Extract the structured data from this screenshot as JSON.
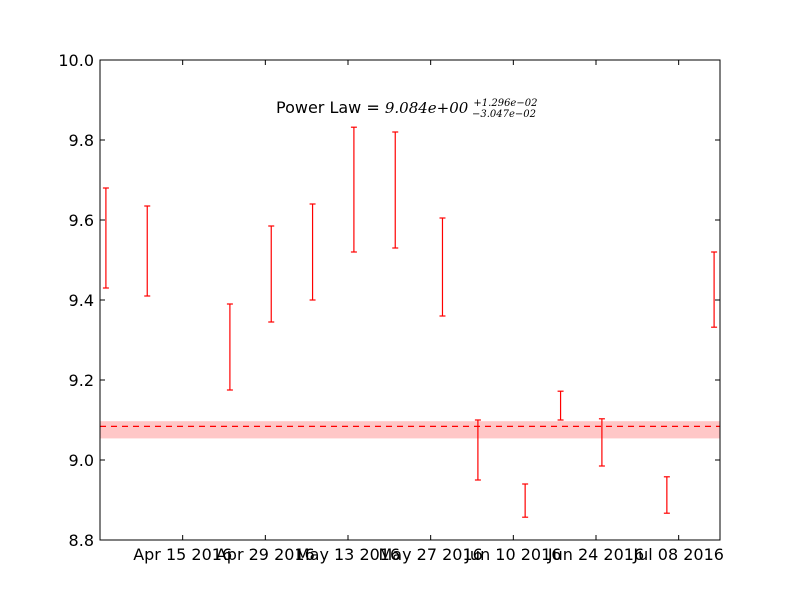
{
  "chart_data": {
    "type": "errorbar",
    "title": {
      "prefix": "Power Law = ",
      "value": "9.084e+00",
      "plus": "+1.296e−02",
      "minus": "−3.047e−02"
    },
    "xlabel": "",
    "ylabel": "",
    "ylim": [
      8.8,
      10.0
    ],
    "xlim": [
      "2016-04-01",
      "2016-07-15"
    ],
    "yticks": [
      8.8,
      9.0,
      9.2,
      9.4,
      9.6,
      9.8,
      10.0
    ],
    "ytick_labels": [
      "8.8",
      "9.0",
      "9.2",
      "9.4",
      "9.6",
      "9.8",
      "10.0"
    ],
    "xticks": [
      {
        "date": "2016-04-15",
        "label": "Apr 15 2016"
      },
      {
        "date": "2016-04-29",
        "label": "Apr 29 2016"
      },
      {
        "date": "2016-05-13",
        "label": "May 13 2016"
      },
      {
        "date": "2016-05-27",
        "label": "May 27 2016"
      },
      {
        "date": "2016-06-10",
        "label": "Jun 10 2016"
      },
      {
        "date": "2016-06-24",
        "label": "Jun 24 2016"
      },
      {
        "date": "2016-07-08",
        "label": "Jul 08 2016"
      }
    ],
    "grid": false,
    "series": [
      {
        "color": "#ff0000",
        "points": [
          {
            "x": "2016-04-02",
            "low": 9.43,
            "high": 9.68
          },
          {
            "x": "2016-04-09",
            "low": 9.41,
            "high": 9.635
          },
          {
            "x": "2016-04-23",
            "low": 9.175,
            "high": 9.39
          },
          {
            "x": "2016-04-30",
            "low": 9.345,
            "high": 9.585
          },
          {
            "x": "2016-05-07",
            "low": 9.4,
            "high": 9.64
          },
          {
            "x": "2016-05-14",
            "low": 9.52,
            "high": 9.832
          },
          {
            "x": "2016-05-21",
            "low": 9.53,
            "high": 9.82
          },
          {
            "x": "2016-05-29",
            "low": 9.36,
            "high": 9.605
          },
          {
            "x": "2016-06-04",
            "low": 8.95,
            "high": 9.1
          },
          {
            "x": "2016-06-12",
            "low": 8.857,
            "high": 8.94
          },
          {
            "x": "2016-06-18",
            "low": 9.1,
            "high": 9.172
          },
          {
            "x": "2016-06-25",
            "low": 8.985,
            "high": 9.103
          },
          {
            "x": "2016-07-06",
            "low": 8.867,
            "high": 8.958
          },
          {
            "x": "2016-07-14",
            "low": 9.332,
            "high": 9.52
          }
        ]
      }
    ],
    "power_law": {
      "value": 9.084,
      "band_low": 9.054,
      "band_high": 9.097,
      "line_color": "#ff0000",
      "band_color": "#ff9999"
    }
  }
}
